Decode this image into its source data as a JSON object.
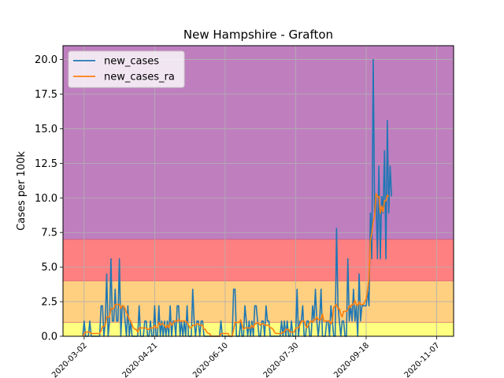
{
  "chart_data": {
    "type": "line",
    "title": "New Hampshire - Grafton",
    "xlabel": "",
    "ylabel": "Cases per 100k",
    "xlim": [
      "2020-02-16",
      "2020-11-19"
    ],
    "ylim": [
      0,
      21
    ],
    "x_ticks": [
      "2020-03-02",
      "2020-04-21",
      "2020-06-10",
      "2020-07-30",
      "2020-09-18",
      "2020-11-07"
    ],
    "x_tick_labels": [
      "2020-03-02",
      "2020-04-21",
      "2020-06-10",
      "2020-07-30",
      "2020-09-18",
      "2020-11-07"
    ],
    "y_ticks": [
      0,
      2.5,
      5,
      7.5,
      10,
      12.5,
      15,
      17.5,
      20
    ],
    "y_tick_labels": [
      "0.0",
      "2.5",
      "5.0",
      "7.5",
      "10.0",
      "12.5",
      "15.0",
      "17.5",
      "20.0"
    ],
    "grid": true,
    "legend_position": "top-left",
    "bands": [
      {
        "from": 0,
        "to": 1,
        "color": "#ffff80"
      },
      {
        "from": 1,
        "to": 4,
        "color": "#ffd080"
      },
      {
        "from": 4,
        "to": 7,
        "color": "#ff8080"
      },
      {
        "from": 7,
        "to": 21,
        "color": "#bf7fbf"
      }
    ],
    "band_edge_color": "#c04060",
    "start_date": "2020-03-01",
    "series": [
      {
        "name": "new_cases",
        "color": "#1f77b4",
        "values": [
          0,
          1.1,
          0,
          0,
          0,
          1.1,
          0,
          0,
          0,
          0,
          0,
          0,
          0,
          2.2,
          2.2,
          0,
          1.1,
          4.5,
          0,
          1.1,
          5.6,
          1.1,
          1.1,
          3.4,
          1.1,
          1.1,
          5.6,
          0,
          2.2,
          2.2,
          1.1,
          0,
          2.2,
          0,
          1.1,
          0,
          0,
          0,
          0,
          0,
          2.2,
          0,
          0,
          0,
          1.1,
          1.1,
          0,
          0,
          1.1,
          0,
          0,
          2.2,
          0,
          0,
          2.2,
          0,
          1.1,
          0,
          1.1,
          0,
          1.1,
          0,
          2.2,
          0,
          1.1,
          1.1,
          0,
          2.2,
          2.2,
          0,
          1.1,
          0,
          1.1,
          0,
          2.2,
          0,
          0,
          0,
          3.4,
          1.1,
          0,
          1.1,
          1.1,
          0,
          1.1,
          1.1,
          0,
          0,
          0,
          0,
          0,
          0,
          0,
          0,
          0,
          0,
          0,
          0,
          1.1,
          0,
          0,
          0,
          0,
          0,
          0,
          0,
          0,
          3.4,
          3.4,
          0,
          0,
          0,
          1.1,
          0,
          0,
          2.2,
          1.1,
          0,
          1.1,
          0,
          1.1,
          0,
          2.2,
          2.2,
          1.1,
          0,
          0,
          1.1,
          1.1,
          0,
          2.2,
          1.1,
          1.1,
          0,
          0,
          0,
          0,
          0,
          0,
          0,
          0,
          1.1,
          0,
          1.1,
          0,
          1.1,
          0,
          0,
          1.1,
          0,
          0,
          0,
          3.4,
          0,
          1.1,
          1.1,
          2.2,
          0,
          0,
          1.1,
          1.1,
          0,
          0,
          2.2,
          1.1,
          3.4,
          1.1,
          0,
          1.1,
          3.4,
          0,
          0,
          0,
          1.1,
          1.1,
          0,
          2.2,
          1.1,
          0,
          0,
          7.8,
          2.2,
          1.1,
          0,
          1.1,
          1.1,
          0,
          0,
          5.6,
          1.1,
          2.2,
          1.1,
          3.4,
          1.1,
          2.2,
          0,
          4.5,
          1.1,
          2.2,
          2.2,
          2.2,
          2.2,
          3.4,
          2.2,
          8.9,
          5.6,
          20.0,
          8.9,
          10.1,
          5.6,
          12.3,
          5.6,
          10.1,
          8.9,
          13.4,
          5.6,
          15.6,
          8.9,
          12.3,
          10.1
        ]
      },
      {
        "name": "new_cases_ra",
        "color": "#ff7f0e",
        "values": [
          0,
          0.2,
          0.3,
          0.3,
          0.3,
          0.3,
          0.2,
          0.2,
          0.2,
          0.2,
          0.2,
          0.2,
          0.2,
          0.4,
          0.7,
          0.7,
          0.8,
          1.4,
          1.4,
          1.4,
          2.0,
          2.0,
          2.0,
          2.3,
          2.3,
          2.3,
          2.3,
          2.0,
          2.2,
          2.2,
          2.0,
          1.7,
          1.5,
          1.2,
          1.1,
          0.8,
          0.6,
          0.5,
          0.5,
          0.3,
          0.6,
          0.6,
          0.6,
          0.6,
          0.6,
          0.6,
          0.5,
          0.5,
          0.6,
          0.6,
          0.6,
          0.8,
          0.6,
          0.6,
          1.0,
          0.8,
          0.9,
          0.9,
          0.8,
          0.6,
          0.8,
          0.6,
          1.0,
          0.8,
          0.9,
          1.1,
          1.1,
          1.1,
          1.2,
          1.1,
          1.1,
          1.1,
          1.1,
          1.1,
          1.0,
          0.8,
          0.6,
          0.6,
          0.8,
          0.8,
          0.8,
          0.9,
          0.9,
          0.8,
          0.8,
          0.8,
          0.5,
          0.5,
          0.3,
          0.2,
          0.2,
          0,
          0,
          0,
          0,
          0,
          0,
          0,
          0.2,
          0.2,
          0.2,
          0.2,
          0.2,
          0.2,
          0,
          0,
          0,
          0.5,
          1.0,
          1.0,
          1.0,
          1.0,
          1.2,
          0.8,
          0.5,
          0.6,
          0.6,
          0.6,
          0.6,
          0.6,
          0.8,
          0.6,
          0.9,
          0.9,
          1.0,
          0.9,
          0.8,
          0.9,
          0.9,
          0.8,
          0.8,
          0.8,
          0.8,
          0.6,
          0.6,
          0.5,
          0.3,
          0.2,
          0.2,
          0.2,
          0.2,
          0.2,
          0.3,
          0.3,
          0.5,
          0.5,
          0.5,
          0.3,
          0.3,
          0.3,
          0.3,
          0.6,
          0.6,
          0.6,
          0.8,
          1.1,
          1.1,
          1.1,
          0.8,
          0.6,
          0.8,
          1.0,
          1.1,
          1.0,
          1.2,
          1.2,
          1.4,
          1.2,
          1.2,
          1.2,
          1.6,
          1.1,
          1.1,
          1.1,
          1.1,
          1.1,
          0.9,
          1.1,
          2.1,
          2.2,
          2.3,
          2.0,
          2.0,
          1.6,
          1.4,
          1.8,
          1.8,
          1.8,
          1.9,
          2.2,
          2.1,
          2.3,
          2.3,
          2.6,
          2.3,
          2.2,
          2.5,
          2.3,
          2.3,
          2.3,
          2.5,
          2.7,
          3.3,
          4.2,
          6.9,
          7.5,
          8.3,
          8.7,
          10.3,
          10.1,
          10.1,
          8.9,
          9.4,
          9.0,
          9.8,
          9.8,
          10.2,
          10.1
        ]
      }
    ]
  }
}
